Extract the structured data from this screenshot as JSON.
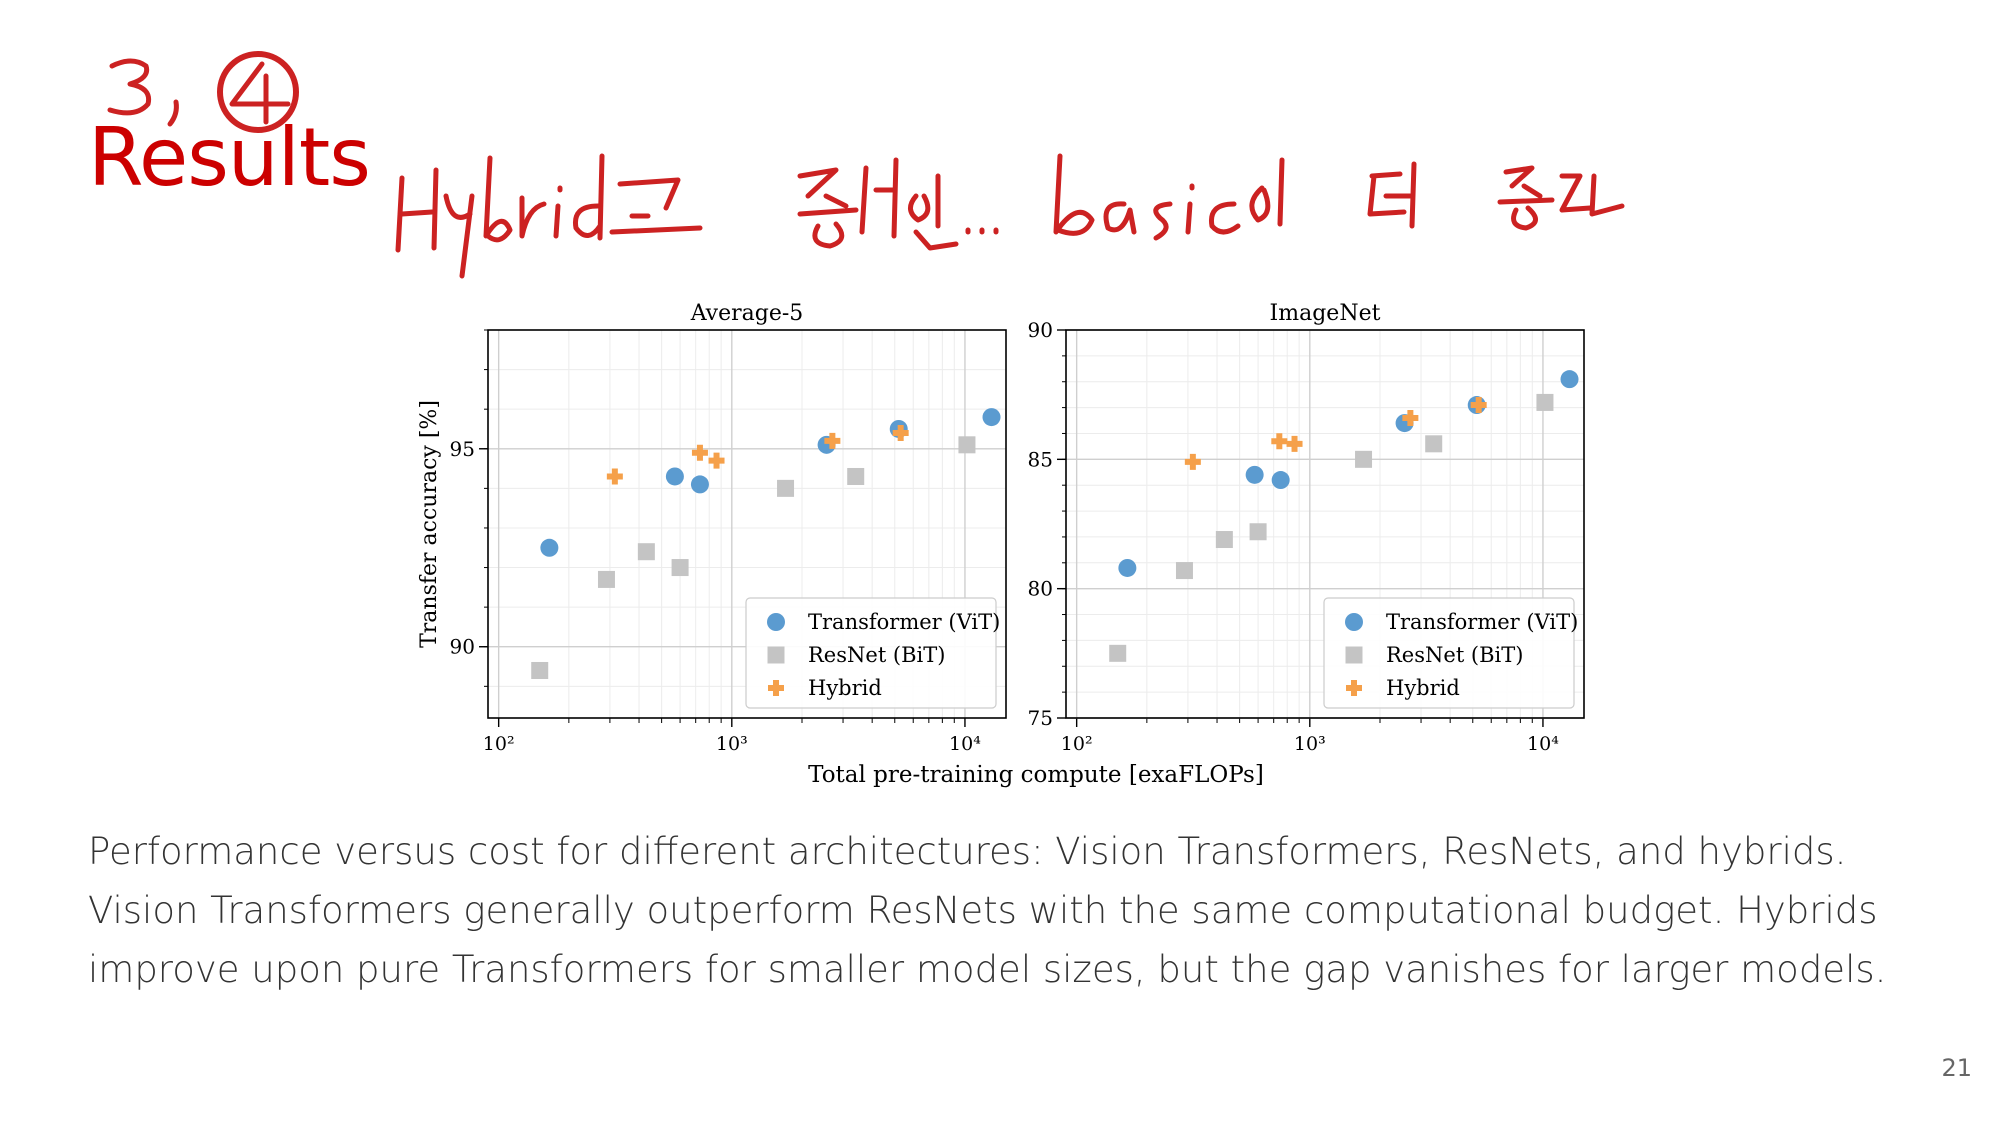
{
  "slide": {
    "title": "Results",
    "annotation_number": "3,4",
    "handwritten_note": "Hybrid도 좋지만... basic이 더 좋다",
    "caption": "Performance versus cost for different architectures: Vision Transformers, ResNets, and hybrids. Vision Transformers generally outperform ResNets with the same computational budget. Hybrids improve upon pure Transformers for smaller model sizes, but the gap vanishes for larger models.",
    "page_number": "21"
  },
  "colors": {
    "title": "#cc0000",
    "ink": "#cc2222",
    "vit": "#5b9bd0",
    "bit": "#c4c4c4",
    "hybrid": "#f5a04a"
  },
  "chart_data": [
    {
      "type": "scatter",
      "title": "Average-5",
      "xlabel": "Total pre-training compute [exaFLOPs]",
      "ylabel": "Transfer accuracy [%]",
      "xscale": "log",
      "xlim": [
        90,
        15000
      ],
      "ylim": [
        88.2,
        98.0
      ],
      "yticks": [
        90,
        95
      ],
      "xticks": [
        100,
        1000,
        10000
      ],
      "xtick_labels": [
        "10²",
        "10³",
        "10⁴"
      ],
      "grid": true,
      "legend": "bottom-right",
      "series": [
        {
          "name": "Transformer (ViT)",
          "marker": "circle",
          "x": [
            165,
            570,
            730,
            2550,
            5200,
            13000
          ],
          "y": [
            92.5,
            94.3,
            94.1,
            95.1,
            95.5,
            95.8
          ]
        },
        {
          "name": "ResNet (BiT)",
          "marker": "square",
          "x": [
            150,
            290,
            430,
            600,
            1700,
            3400,
            10200
          ],
          "y": [
            89.4,
            91.7,
            92.4,
            92.0,
            94.0,
            94.3,
            95.1
          ]
        },
        {
          "name": "Hybrid",
          "marker": "plus",
          "x": [
            315,
            730,
            860,
            2700,
            5300
          ],
          "y": [
            94.3,
            94.9,
            94.7,
            95.2,
            95.4
          ]
        }
      ]
    },
    {
      "type": "scatter",
      "title": "ImageNet",
      "xlabel": "",
      "ylabel": "",
      "xscale": "log",
      "xlim": [
        90,
        15000
      ],
      "ylim": [
        75,
        90
      ],
      "yticks": [
        75,
        80,
        85,
        90
      ],
      "xticks": [
        100,
        1000,
        10000
      ],
      "xtick_labels": [
        "10²",
        "10³",
        "10⁴"
      ],
      "grid": true,
      "legend": "bottom-right",
      "series": [
        {
          "name": "Transformer (ViT)",
          "marker": "circle",
          "x": [
            165,
            580,
            750,
            2550,
            5200,
            13000
          ],
          "y": [
            80.8,
            84.4,
            84.2,
            86.4,
            87.1,
            88.1
          ]
        },
        {
          "name": "ResNet (BiT)",
          "marker": "square",
          "x": [
            150,
            290,
            430,
            600,
            1700,
            3400,
            10200
          ],
          "y": [
            77.5,
            80.7,
            81.9,
            82.2,
            85.0,
            85.6,
            87.2
          ]
        },
        {
          "name": "Hybrid",
          "marker": "plus",
          "x": [
            315,
            740,
            860,
            2700,
            5300
          ],
          "y": [
            84.9,
            85.7,
            85.6,
            86.6,
            87.1
          ]
        }
      ]
    }
  ]
}
